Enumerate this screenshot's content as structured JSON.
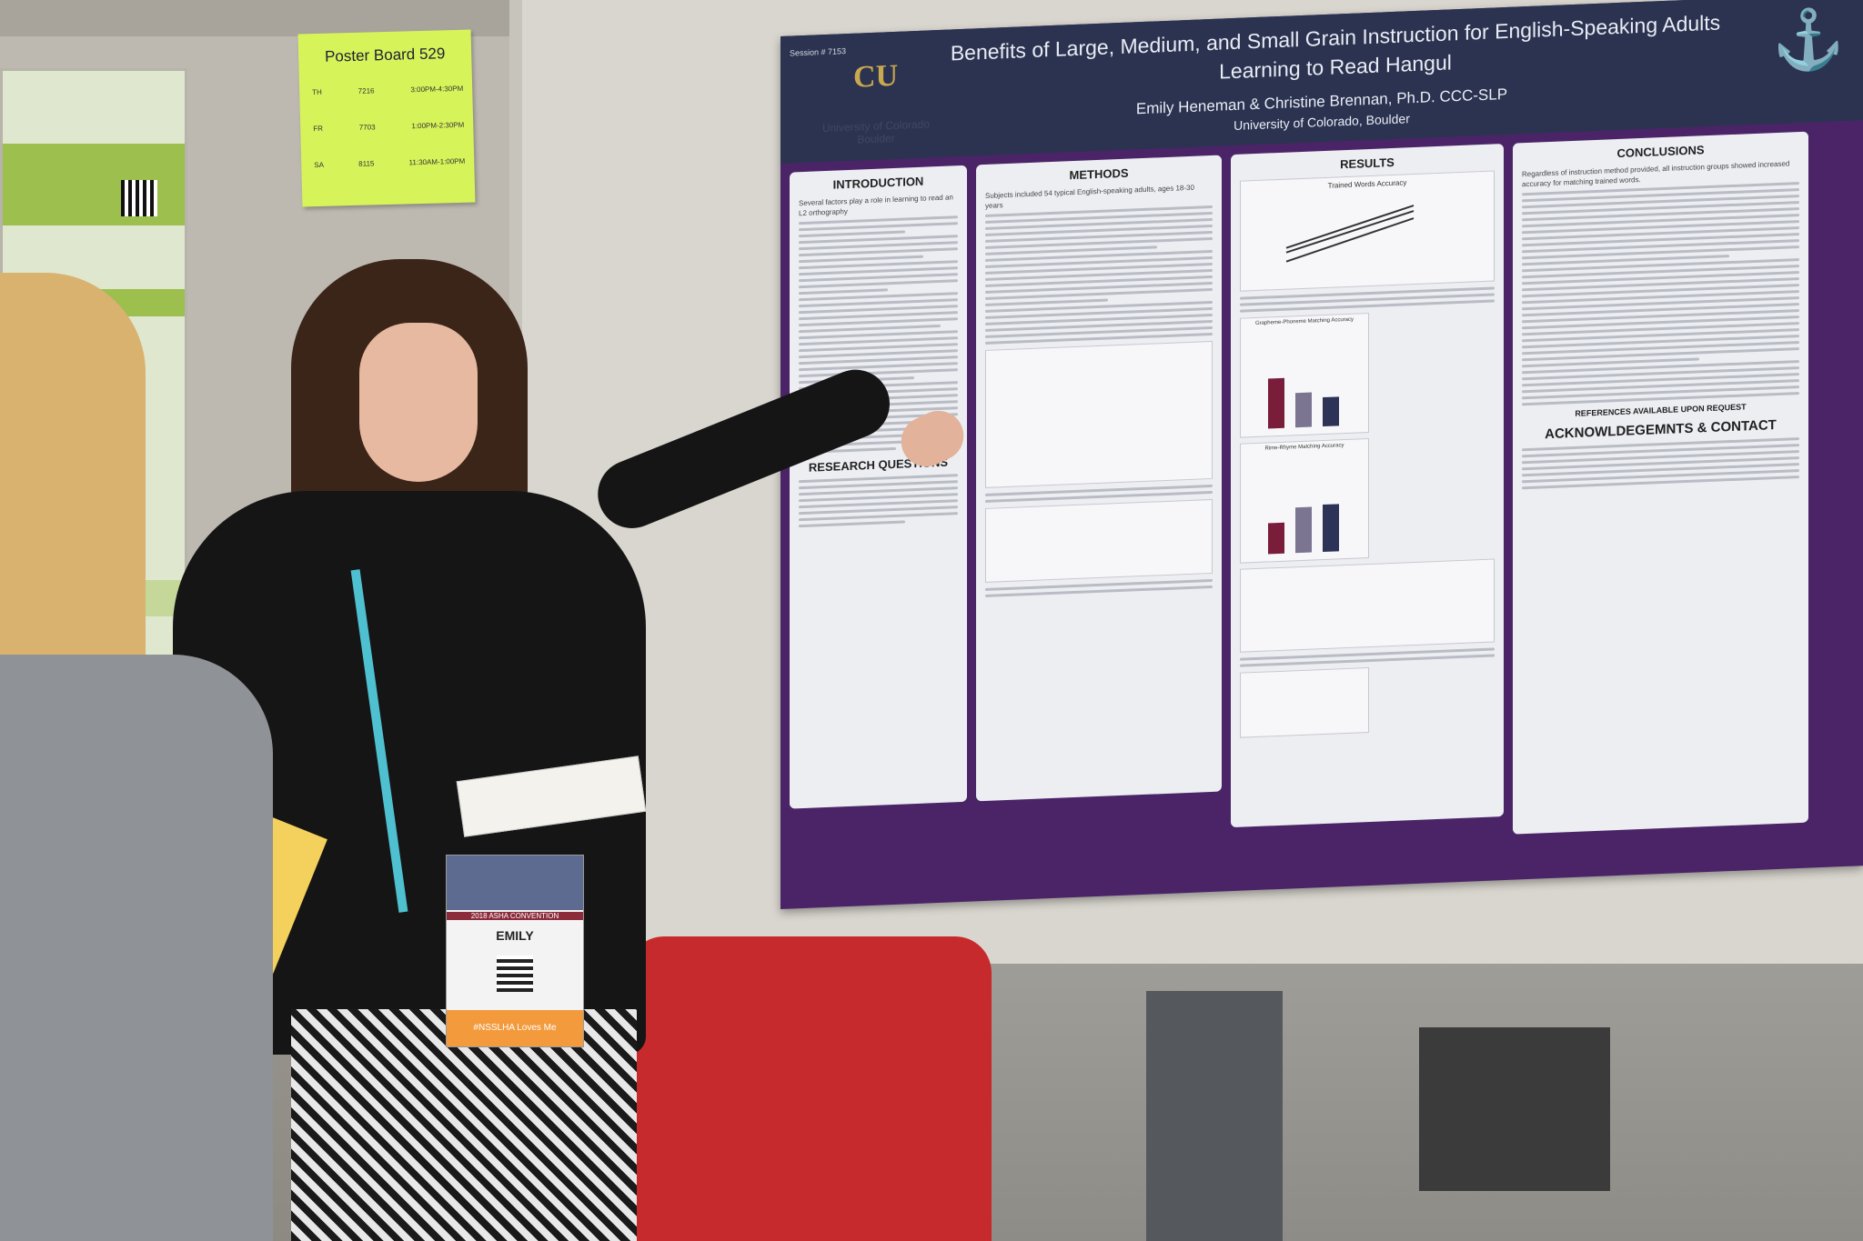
{
  "board_note": {
    "title": "Poster Board 529",
    "rows": [
      {
        "day": "TH",
        "code": "7216",
        "time": "3:00PM-4:30PM"
      },
      {
        "day": "FR",
        "code": "7703",
        "time": "1:00PM-2:30PM"
      },
      {
        "day": "SA",
        "code": "8115",
        "time": "11:30AM-1:00PM"
      }
    ]
  },
  "poster": {
    "session": "Session # 7153",
    "title": "Benefits of Large, Medium, and Small Grain Instruction for English-Speaking Adults Learning to Read Hangul",
    "authors": "Emily Heneman & Christine Brennan, Ph.D. CCC-SLP",
    "affiliation": "University of Colorado, Boulder",
    "logo_text": "CU",
    "university_name": "University of Colorado Boulder",
    "sections": {
      "introduction": "INTRODUCTION",
      "research_questions": "RESEARCH QUESTIONS",
      "methods": "METHODS",
      "results": "RESULTS",
      "conclusions": "CONCLUSIONS",
      "references": "REFERENCES AVAILABLE UPON REQUEST",
      "acknowledgements": "ACKNOWLDEGEMNTS & CONTACT"
    },
    "results_chart_title": "Trained Words Accuracy",
    "fig_grapheme": "Grapheme-Phoneme Matching Accuracy",
    "fig_rime": "Rime-Rhyme Matching Accuracy",
    "intro_excerpt": "Several factors play a role in learning to read an L2 orthography",
    "methods_excerpt": "Subjects included 54 typical English-speaking adults, ages 18-30 years",
    "conclusion_excerpt": "Regardless of instruction method provided, all instruction groups showed increased accuracy for matching trained words."
  },
  "badge": {
    "event": "2018 ASHA CONVENTION",
    "name": "EMILY",
    "footer": "#NSSLHA Loves Me"
  },
  "colors": {
    "poster_bg": "#4b2468",
    "header_bg": "#2b3350",
    "note": "#d7f35a"
  }
}
